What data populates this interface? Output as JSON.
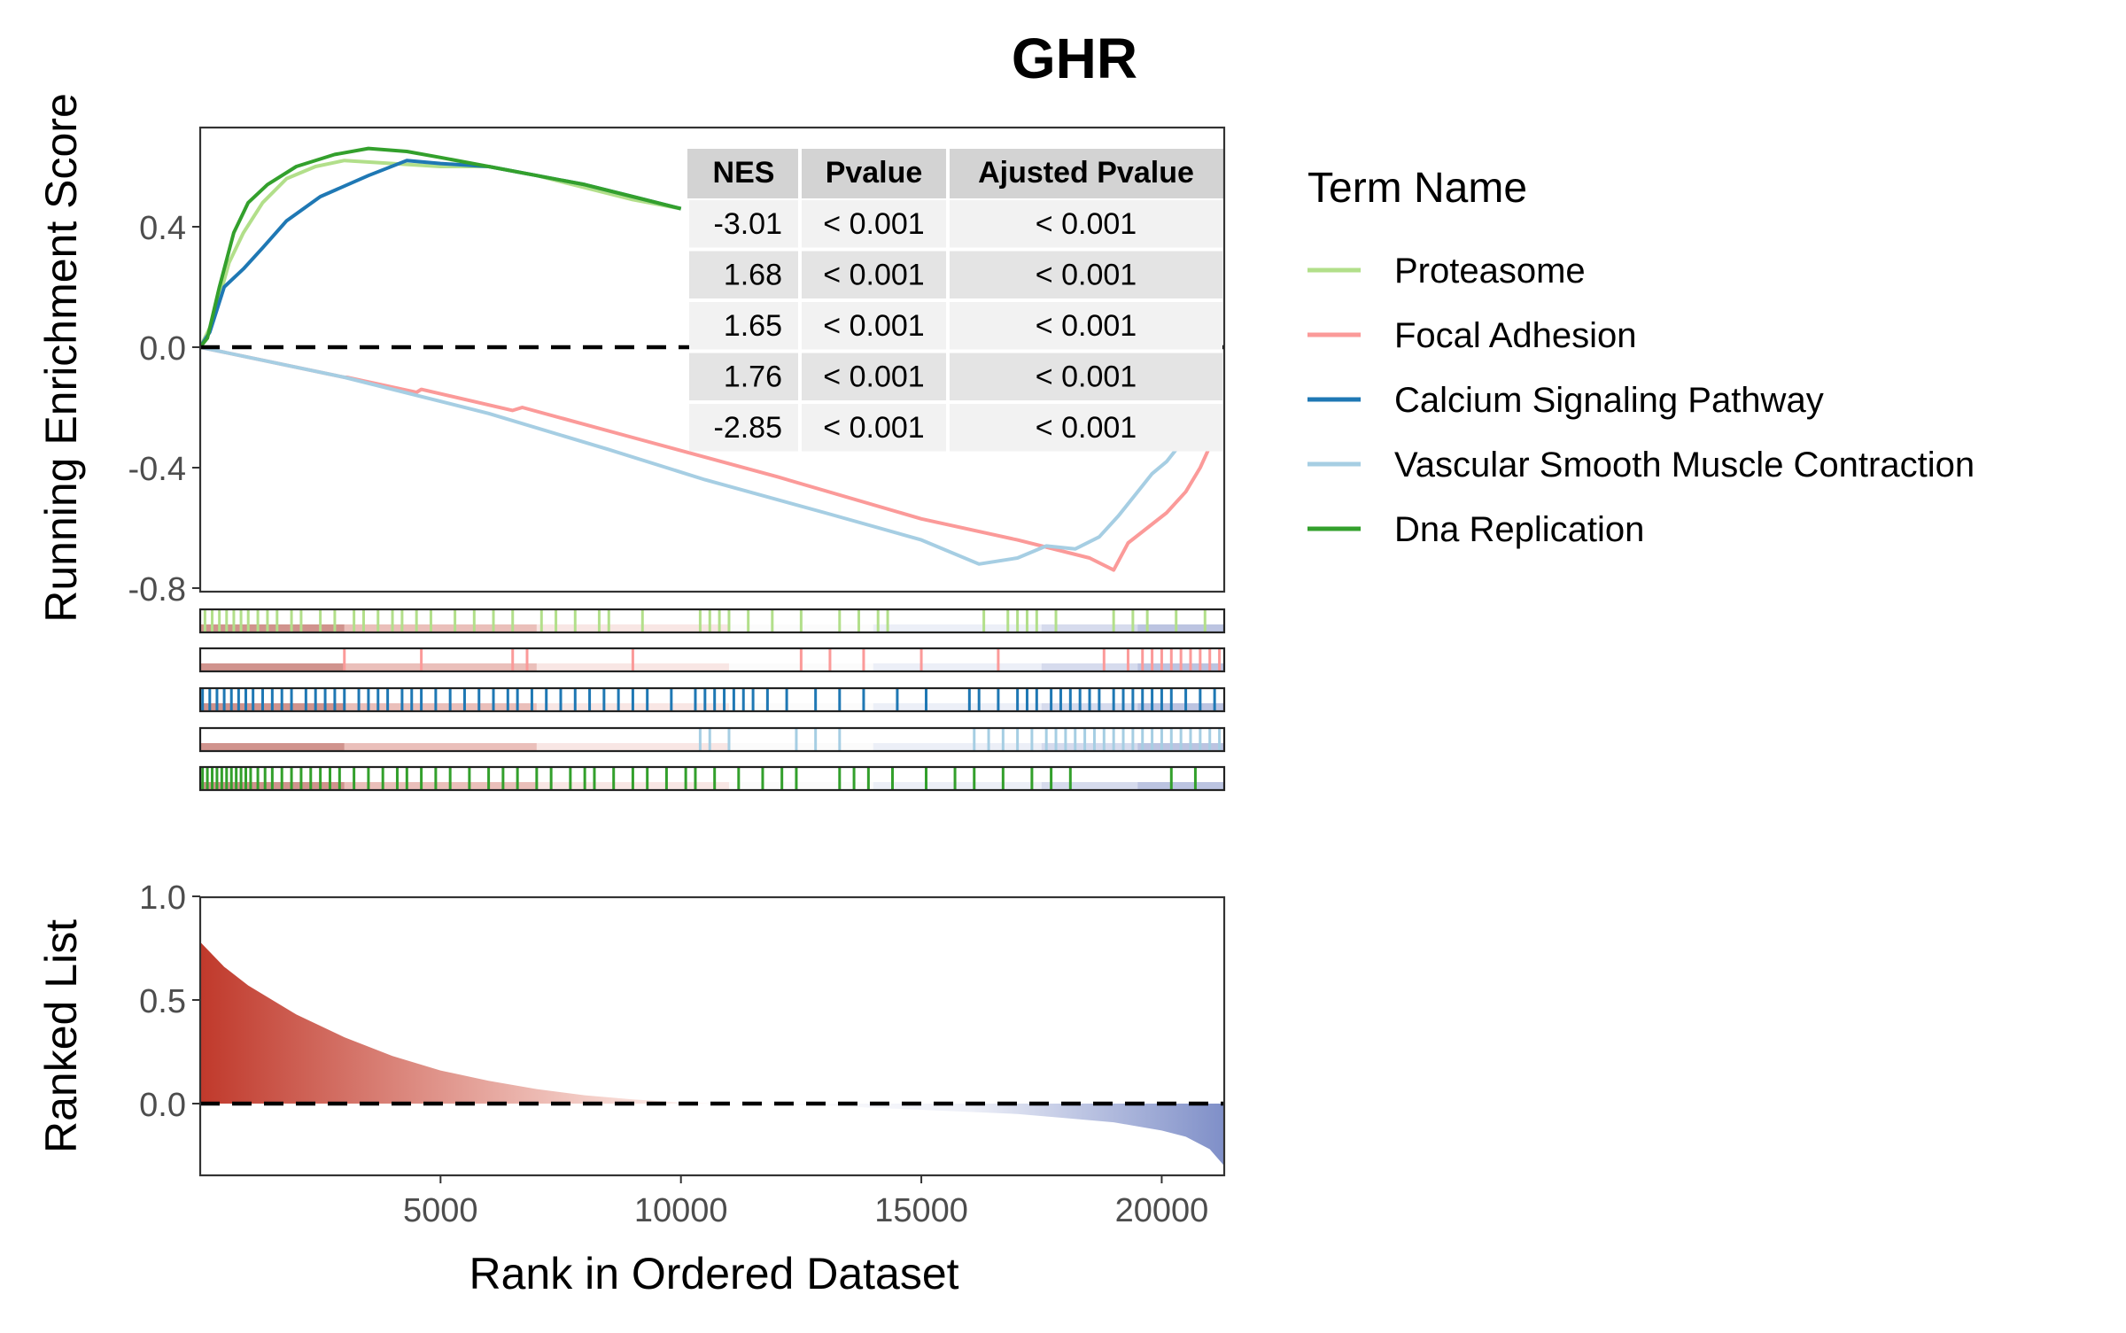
{
  "title": "GHR",
  "ylabel_top": "Running Enrichment Score",
  "ylabel_bottom": "Ranked List",
  "xlabel": "Rank in Ordered Dataset",
  "legend_title": "Term Name",
  "colors": {
    "Proteasome": "#b2df8a",
    "Focal Adhesion": "#fb9a99",
    "Calcium Signaling Pathway": "#1f78b4",
    "Vascular Smooth Muscle Contraction": "#a6cee3",
    "Dna Replication": "#33a02c",
    "rank_pos": "#c0392b",
    "rank_neg": "#7f8fc8"
  },
  "table": {
    "headers": [
      "NES",
      "Pvalue",
      "Ajusted Pvalue"
    ],
    "rows": [
      [
        "-3.01",
        "< 0.001",
        "< 0.001"
      ],
      [
        "1.68",
        "< 0.001",
        "< 0.001"
      ],
      [
        "1.65",
        "< 0.001",
        "< 0.001"
      ],
      [
        "1.76",
        "< 0.001",
        "< 0.001"
      ],
      [
        "-2.85",
        "< 0.001",
        "< 0.001"
      ]
    ]
  },
  "chart_data": [
    {
      "type": "line",
      "title": "GHR",
      "ylabel": "Running Enrichment Score",
      "xlim": [
        1,
        21300
      ],
      "ylim": [
        -0.8,
        0.72
      ],
      "yticks": [
        0.4,
        0.0,
        -0.4,
        -0.8
      ],
      "ytick_labels": [
        "0.4",
        "0.0",
        "-0.4",
        "-0.8"
      ],
      "reference_line": 0,
      "legend_position": "right",
      "series": [
        {
          "name": "Proteasome",
          "points": [
            [
              0,
              0
            ],
            [
              250,
              0.08
            ],
            [
              600,
              0.28
            ],
            [
              900,
              0.38
            ],
            [
              1300,
              0.48
            ],
            [
              1800,
              0.56
            ],
            [
              2400,
              0.6
            ],
            [
              3000,
              0.62
            ],
            [
              4000,
              0.61
            ],
            [
              5000,
              0.6
            ],
            [
              6000,
              0.6
            ],
            [
              7000,
              0.57
            ],
            [
              8000,
              0.53
            ],
            [
              9000,
              0.49
            ],
            [
              10000,
              0.46
            ]
          ]
        },
        {
          "name": "Focal Adhesion",
          "points": [
            [
              0,
              0
            ],
            [
              3000,
              -0.1
            ],
            [
              3050,
              -0.1
            ],
            [
              4500,
              -0.15
            ],
            [
              4600,
              -0.14
            ],
            [
              6500,
              -0.21
            ],
            [
              6700,
              -0.2
            ],
            [
              9000,
              -0.3
            ],
            [
              12000,
              -0.43
            ],
            [
              15000,
              -0.57
            ],
            [
              17000,
              -0.64
            ],
            [
              18500,
              -0.7
            ],
            [
              19000,
              -0.74
            ],
            [
              19300,
              -0.65
            ],
            [
              19700,
              -0.6
            ],
            [
              20100,
              -0.55
            ],
            [
              20500,
              -0.48
            ],
            [
              20800,
              -0.4
            ],
            [
              21000,
              -0.33
            ],
            [
              21200,
              -0.3
            ]
          ]
        },
        {
          "name": "Calcium Signaling Pathway",
          "points": [
            [
              0,
              0
            ],
            [
              200,
              0.05
            ],
            [
              500,
              0.2
            ],
            [
              900,
              0.26
            ],
            [
              1300,
              0.33
            ],
            [
              1800,
              0.42
            ],
            [
              2500,
              0.5
            ],
            [
              3500,
              0.57
            ],
            [
              4300,
              0.62
            ],
            [
              5000,
              0.61
            ],
            [
              6000,
              0.6
            ],
            [
              7000,
              0.57
            ],
            [
              8000,
              0.54
            ],
            [
              9000,
              0.5
            ],
            [
              10000,
              0.46
            ]
          ]
        },
        {
          "name": "Vascular Smooth Muscle Contraction",
          "points": [
            [
              0,
              0
            ],
            [
              3000,
              -0.1
            ],
            [
              6000,
              -0.22
            ],
            [
              8500,
              -0.34
            ],
            [
              10500,
              -0.44
            ],
            [
              13000,
              -0.55
            ],
            [
              15000,
              -0.64
            ],
            [
              16200,
              -0.72
            ],
            [
              17000,
              -0.7
            ],
            [
              17600,
              -0.66
            ],
            [
              18200,
              -0.67
            ],
            [
              18700,
              -0.63
            ],
            [
              19100,
              -0.56
            ],
            [
              19500,
              -0.48
            ],
            [
              19800,
              -0.42
            ],
            [
              20100,
              -0.38
            ],
            [
              20300,
              -0.34
            ],
            [
              20500,
              -0.3
            ]
          ]
        },
        {
          "name": "Dna Replication",
          "points": [
            [
              0,
              0
            ],
            [
              150,
              0.03
            ],
            [
              400,
              0.2
            ],
            [
              700,
              0.38
            ],
            [
              1000,
              0.48
            ],
            [
              1400,
              0.54
            ],
            [
              2000,
              0.6
            ],
            [
              2800,
              0.64
            ],
            [
              3500,
              0.66
            ],
            [
              4300,
              0.65
            ],
            [
              5000,
              0.63
            ],
            [
              6000,
              0.6
            ],
            [
              7000,
              0.57
            ],
            [
              8000,
              0.54
            ],
            [
              9000,
              0.5
            ],
            [
              10000,
              0.46
            ]
          ]
        }
      ]
    },
    {
      "type": "heatmap",
      "note": "gene-set hit tracks",
      "series": [
        {
          "name": "Proteasome",
          "hits": [
            100,
            250,
            400,
            550,
            700,
            850,
            1000,
            1200,
            1400,
            1600,
            1900,
            2100,
            2500,
            2800,
            3200,
            3400,
            3700,
            4000,
            4200,
            4500,
            4800,
            5300,
            5700,
            6100,
            6500,
            7100,
            7400,
            7800,
            8300,
            8500,
            9200,
            10400,
            10600,
            10800,
            11000,
            11400,
            11900,
            12500,
            13300,
            13700,
            14100,
            14300,
            16300,
            16800,
            17000,
            17200,
            17400,
            17800,
            19000,
            19400,
            19700,
            20300,
            20900
          ]
        },
        {
          "name": "Focal Adhesion",
          "hits": [
            3000,
            4600,
            6500,
            6800,
            9000,
            12500,
            13100,
            13800,
            15000,
            16600,
            18800,
            19300,
            19600,
            19800,
            20000,
            20200,
            20400,
            20600,
            20800,
            21000,
            21200
          ]
        },
        {
          "name": "Calcium Signaling Pathway",
          "hits": [
            50,
            200,
            350,
            500,
            650,
            800,
            950,
            1100,
            1300,
            1500,
            1700,
            1900,
            2200,
            2400,
            2600,
            2800,
            3000,
            3300,
            3500,
            3700,
            3900,
            4200,
            4400,
            4600,
            4900,
            5200,
            5500,
            5800,
            6100,
            6400,
            6600,
            6900,
            7200,
            7500,
            7800,
            8100,
            8400,
            8700,
            9000,
            9300,
            9800,
            10300,
            10500,
            10700,
            10900,
            11100,
            11300,
            11500,
            11800,
            12200,
            12800,
            13300,
            13800,
            14500,
            15100,
            16000,
            16200,
            16600,
            17000,
            17200,
            17400,
            17700,
            17900,
            18100,
            18300,
            18500,
            18700,
            19000,
            19200,
            19400,
            19600,
            19800,
            20000,
            20200,
            20500,
            20800,
            21100
          ]
        },
        {
          "name": "Vascular Smooth Muscle Contraction",
          "hits": [
            10400,
            10600,
            11000,
            12400,
            12800,
            13300,
            16100,
            16400,
            16700,
            17000,
            17300,
            17600,
            17800,
            18000,
            18200,
            18400,
            18600,
            18800,
            19000,
            19200,
            19400,
            19600,
            19800,
            20000,
            20200,
            20400,
            20600,
            20800,
            21000,
            21200
          ]
        },
        {
          "name": "Dna Replication",
          "hits": [
            50,
            150,
            250,
            350,
            450,
            550,
            650,
            750,
            850,
            950,
            1050,
            1200,
            1350,
            1500,
            1700,
            1900,
            2100,
            2300,
            2500,
            2700,
            2900,
            3200,
            3500,
            3800,
            4100,
            4300,
            4600,
            4900,
            5200,
            5600,
            6000,
            6300,
            6600,
            7000,
            7300,
            7700,
            8000,
            8200,
            8600,
            9000,
            9300,
            9700,
            10100,
            10300,
            10700,
            11200,
            11700,
            12100,
            12400,
            13300,
            13600,
            13900,
            14400,
            15100,
            15700,
            16100,
            16700,
            17300,
            17700,
            18100,
            20200,
            20700
          ]
        }
      ]
    },
    {
      "type": "area",
      "ylabel": "Ranked List",
      "xlabel": "Rank in Ordered Dataset",
      "xlim": [
        1,
        21300
      ],
      "ylim": [
        -0.35,
        1.0
      ],
      "xticks": [
        5000,
        10000,
        15000,
        20000
      ],
      "xtick_labels": [
        "5000",
        "10000",
        "15000",
        "20000"
      ],
      "yticks": [
        1.0,
        0.5,
        0.0
      ],
      "ytick_labels": [
        "1.0",
        "0.5",
        "0.0"
      ],
      "reference_line": 0,
      "points": [
        [
          1,
          0.78
        ],
        [
          500,
          0.66
        ],
        [
          1000,
          0.57
        ],
        [
          2000,
          0.43
        ],
        [
          3000,
          0.32
        ],
        [
          4000,
          0.23
        ],
        [
          5000,
          0.16
        ],
        [
          6000,
          0.11
        ],
        [
          7000,
          0.07
        ],
        [
          8000,
          0.04
        ],
        [
          9000,
          0.02
        ],
        [
          10000,
          0.005
        ],
        [
          11000,
          0.0
        ],
        [
          12000,
          -0.005
        ],
        [
          13000,
          -0.01
        ],
        [
          14000,
          -0.02
        ],
        [
          15000,
          -0.03
        ],
        [
          16000,
          -0.04
        ],
        [
          17000,
          -0.05
        ],
        [
          18000,
          -0.07
        ],
        [
          19000,
          -0.09
        ],
        [
          20000,
          -0.13
        ],
        [
          20500,
          -0.16
        ],
        [
          21000,
          -0.22
        ],
        [
          21300,
          -0.3
        ]
      ]
    }
  ]
}
